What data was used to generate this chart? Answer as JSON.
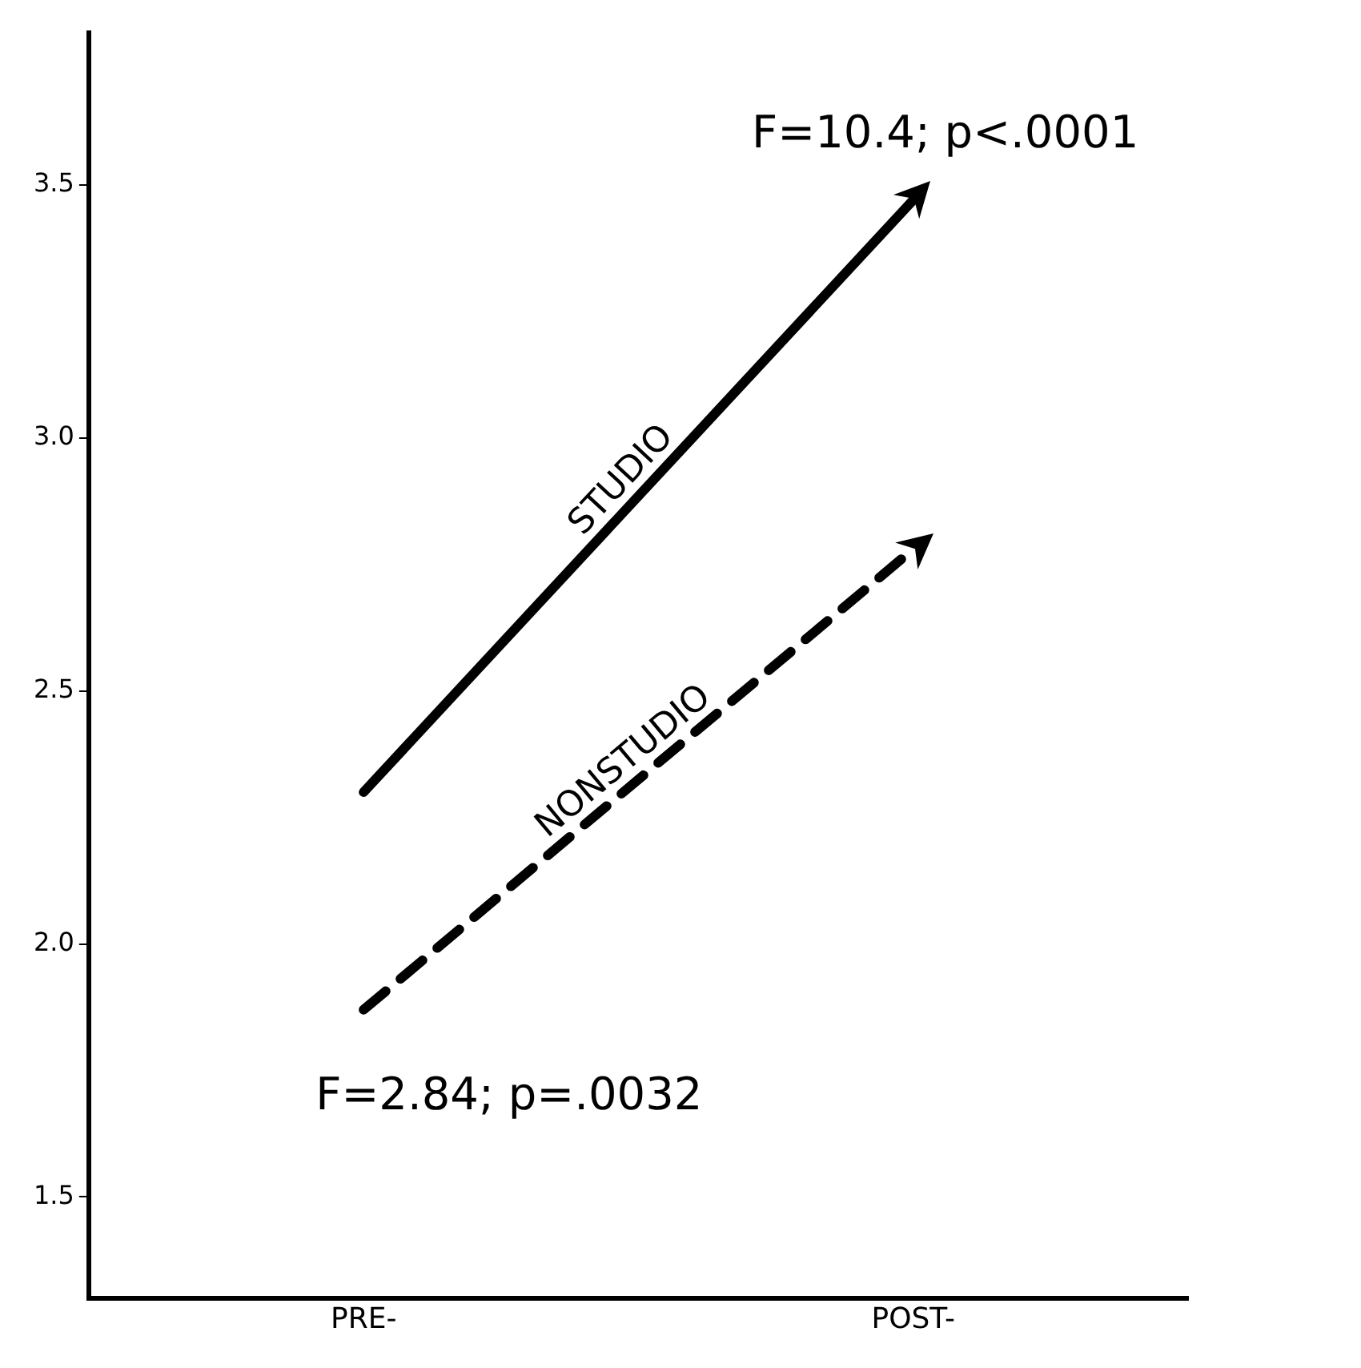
{
  "chart_data": {
    "type": "line",
    "categories": [
      "PRE-",
      "POST-"
    ],
    "series": [
      {
        "name": "STUDIO",
        "color": "#000000",
        "values": [
          2.3,
          3.47
        ],
        "line_style": "solid"
      },
      {
        "name": "NONSTUDIO",
        "color": "#000000",
        "values": [
          1.87,
          2.78
        ],
        "line_style": "dashed"
      }
    ],
    "ylim": [
      1.3,
      3.8
    ],
    "yticks": [
      1.5,
      {
        "value": 2,
        "label": "2.0"
      },
      2.5,
      {
        "value": 3,
        "label": "3.0"
      },
      3.5
    ],
    "grid": false,
    "legend": false,
    "annotations": [
      {
        "text": "F=10.4; p<.0001",
        "x": "POST-",
        "y": 3.47
      },
      {
        "text": "F=2.84; p=.0032",
        "x": "PRE-",
        "y": 1.87
      }
    ]
  }
}
